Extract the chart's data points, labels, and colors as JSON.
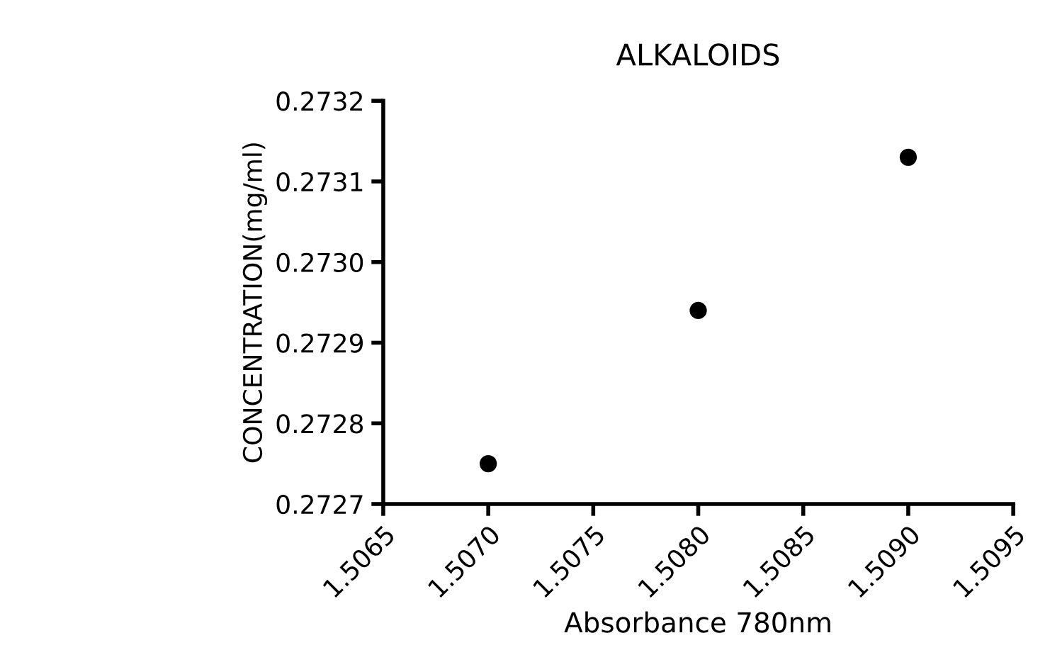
{
  "chart_data": {
    "type": "scatter",
    "title": "ALKALOIDS",
    "xlabel": "Absorbance 780nm",
    "ylabel": "CONCENTRATION(mg/ml)",
    "x": [
      1.507,
      1.508,
      1.509
    ],
    "series": [
      {
        "color": "#000000",
        "values": [
          0.27275,
          0.27294,
          0.27313
        ]
      }
    ],
    "xlim": [
      1.5065,
      1.5095
    ],
    "xticks": [
      1.5065,
      {
        "value": 1.507,
        "label": "1.5070"
      },
      1.5075,
      {
        "value": 1.508,
        "label": "1.5080"
      },
      1.5085,
      {
        "value": 1.509,
        "label": "1.5090"
      },
      1.5095
    ],
    "ylim": [
      0.2727,
      0.2732
    ],
    "yticks": [
      0.2727,
      0.2728,
      0.2729,
      {
        "value": 0.273,
        "label": "0.2730"
      },
      0.2731,
      0.2732
    ],
    "grid": false,
    "legend": false,
    "marker": "circle"
  }
}
